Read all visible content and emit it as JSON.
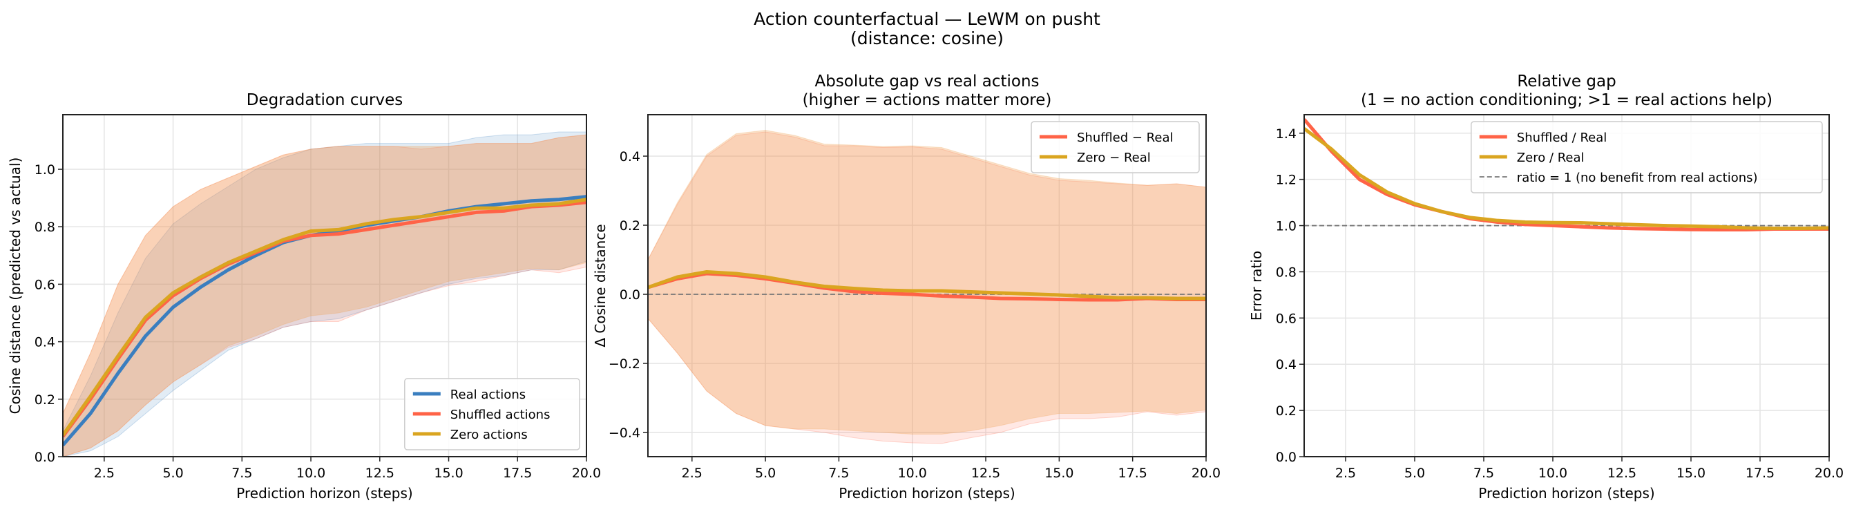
{
  "suptitle": [
    "Action counterfactual — LeWM on pusht",
    "(distance: cosine)"
  ],
  "colors": {
    "real": "#3a7ebf",
    "shuffled": "#ff6347",
    "zero": "#daa520",
    "zero_band": "#f0a050",
    "reference": "#777777"
  },
  "chart_data": [
    {
      "type": "line",
      "title": [
        "Degradation curves"
      ],
      "xlabel": "Prediction horizon (steps)",
      "ylabel": "Cosine distance  (predicted vs actual)",
      "xlim": [
        1,
        20
      ],
      "ylim": [
        0,
        1.19
      ],
      "xticks": [
        "2.5",
        "5.0",
        "7.5",
        "10.0",
        "12.5",
        "15.0",
        "17.5",
        "20.0"
      ],
      "yticks": [
        "0.0",
        "0.2",
        "0.4",
        "0.6",
        "0.8",
        "1.0"
      ],
      "grid": true,
      "legend": "lower-right",
      "x": [
        1,
        2,
        3,
        4,
        5,
        6,
        7,
        8,
        9,
        10,
        11,
        12,
        13,
        14,
        15,
        16,
        17,
        18,
        19,
        20
      ],
      "series": [
        {
          "name": "Real actions",
          "color_key": "real",
          "values": [
            0.04,
            0.15,
            0.29,
            0.42,
            0.52,
            0.59,
            0.65,
            0.7,
            0.745,
            0.77,
            0.785,
            0.805,
            0.82,
            0.835,
            0.855,
            0.87,
            0.88,
            0.89,
            0.895,
            0.905
          ],
          "band_low": [
            0,
            0.02,
            0.07,
            0.15,
            0.23,
            0.3,
            0.37,
            0.41,
            0.45,
            0.47,
            0.48,
            0.51,
            0.54,
            0.57,
            0.6,
            0.62,
            0.63,
            0.65,
            0.65,
            0.68
          ],
          "band_high": [
            0.09,
            0.28,
            0.5,
            0.69,
            0.81,
            0.88,
            0.94,
            1.0,
            1.04,
            1.07,
            1.08,
            1.09,
            1.09,
            1.09,
            1.09,
            1.11,
            1.12,
            1.12,
            1.13,
            1.13
          ]
        },
        {
          "name": "Shuffled actions",
          "color_key": "shuffled",
          "values": [
            0.07,
            0.2,
            0.34,
            0.475,
            0.56,
            0.62,
            0.67,
            0.71,
            0.75,
            0.77,
            0.775,
            0.79,
            0.805,
            0.82,
            0.835,
            0.85,
            0.855,
            0.87,
            0.875,
            0.885
          ],
          "band_low": [
            0,
            0.03,
            0.09,
            0.18,
            0.26,
            0.32,
            0.38,
            0.41,
            0.45,
            0.47,
            0.47,
            0.51,
            0.54,
            0.57,
            0.595,
            0.61,
            0.63,
            0.65,
            0.64,
            0.66
          ],
          "band_high": [
            0.15,
            0.36,
            0.6,
            0.77,
            0.87,
            0.93,
            0.97,
            1.01,
            1.05,
            1.07,
            1.08,
            1.08,
            1.08,
            1.07,
            1.08,
            1.09,
            1.09,
            1.09,
            1.11,
            1.12
          ]
        },
        {
          "name": "Zero actions",
          "color_key": "zero",
          "values": [
            0.075,
            0.21,
            0.35,
            0.485,
            0.57,
            0.625,
            0.675,
            0.715,
            0.755,
            0.785,
            0.79,
            0.81,
            0.825,
            0.835,
            0.85,
            0.865,
            0.865,
            0.875,
            0.88,
            0.895
          ],
          "band_low": [
            0,
            0.03,
            0.09,
            0.18,
            0.26,
            0.32,
            0.385,
            0.42,
            0.46,
            0.49,
            0.5,
            0.52,
            0.55,
            0.58,
            0.61,
            0.625,
            0.64,
            0.655,
            0.65,
            0.675
          ],
          "band_high": [
            0.15,
            0.36,
            0.6,
            0.77,
            0.87,
            0.93,
            0.97,
            1.01,
            1.05,
            1.07,
            1.08,
            1.08,
            1.08,
            1.08,
            1.08,
            1.09,
            1.09,
            1.09,
            1.11,
            1.12
          ]
        }
      ]
    },
    {
      "type": "line",
      "title": [
        "Absolute gap vs real actions",
        "(higher = actions matter more)"
      ],
      "xlabel": "Prediction horizon (steps)",
      "ylabel": "Δ Cosine distance",
      "xlim": [
        1,
        20
      ],
      "ylim": [
        -0.47,
        0.52
      ],
      "xticks": [
        "2.5",
        "5.0",
        "7.5",
        "10.0",
        "12.5",
        "15.0",
        "17.5",
        "20.0"
      ],
      "yticks": [
        "−0.4",
        "−0.2",
        "0.0",
        "0.2",
        "0.4"
      ],
      "reference_y": 0,
      "grid": true,
      "legend": "upper-right",
      "x": [
        1,
        2,
        3,
        4,
        5,
        6,
        7,
        8,
        9,
        10,
        11,
        12,
        13,
        14,
        15,
        16,
        17,
        18,
        19,
        20
      ],
      "series": [
        {
          "name": "Shuffled − Real",
          "color_key": "shuffled",
          "values": [
            0.02,
            0.045,
            0.06,
            0.055,
            0.045,
            0.032,
            0.018,
            0.008,
            0.003,
            0.0,
            -0.005,
            -0.008,
            -0.012,
            -0.013,
            -0.015,
            -0.016,
            -0.016,
            -0.012,
            -0.015,
            -0.015
          ],
          "band_low": [
            -0.07,
            -0.17,
            -0.28,
            -0.345,
            -0.38,
            -0.39,
            -0.4,
            -0.415,
            -0.425,
            -0.43,
            -0.432,
            -0.415,
            -0.4,
            -0.375,
            -0.36,
            -0.36,
            -0.355,
            -0.34,
            -0.35,
            -0.34
          ],
          "band_high": [
            0.1,
            0.26,
            0.4,
            0.46,
            0.47,
            0.455,
            0.43,
            0.43,
            0.425,
            0.427,
            0.42,
            0.395,
            0.37,
            0.345,
            0.33,
            0.325,
            0.32,
            0.315,
            0.32,
            0.31
          ]
        },
        {
          "name": "Zero − Real",
          "color_key": "zero",
          "values": [
            0.02,
            0.05,
            0.065,
            0.06,
            0.05,
            0.035,
            0.023,
            0.017,
            0.012,
            0.01,
            0.01,
            0.007,
            0.004,
            0.001,
            -0.002,
            -0.006,
            -0.01,
            -0.01,
            -0.012,
            -0.012
          ],
          "band_low": [
            -0.07,
            -0.17,
            -0.28,
            -0.345,
            -0.38,
            -0.39,
            -0.39,
            -0.395,
            -0.4,
            -0.405,
            -0.405,
            -0.395,
            -0.38,
            -0.36,
            -0.345,
            -0.345,
            -0.342,
            -0.338,
            -0.345,
            -0.335
          ],
          "band_high": [
            0.1,
            0.265,
            0.405,
            0.465,
            0.475,
            0.46,
            0.435,
            0.432,
            0.428,
            0.43,
            0.425,
            0.4,
            0.375,
            0.35,
            0.335,
            0.33,
            0.322,
            0.316,
            0.32,
            0.31
          ]
        }
      ]
    },
    {
      "type": "line",
      "title": [
        "Relative gap",
        "(1 = no action conditioning; >1 = real actions help)"
      ],
      "xlabel": "Prediction horizon (steps)",
      "ylabel": "Error ratio",
      "xlim": [
        1,
        20
      ],
      "ylim": [
        0,
        1.48
      ],
      "xticks": [
        "2.5",
        "5.0",
        "7.5",
        "10.0",
        "12.5",
        "15.0",
        "17.5",
        "20.0"
      ],
      "yticks": [
        "0.0",
        "0.2",
        "0.4",
        "0.6",
        "0.8",
        "1.0",
        "1.2",
        "1.4"
      ],
      "reference_y": 1,
      "reference_label": "ratio = 1  (no benefit from real actions)",
      "grid": true,
      "legend": "upper-right",
      "x": [
        1,
        2,
        3,
        4,
        5,
        6,
        7,
        8,
        9,
        10,
        11,
        12,
        13,
        14,
        15,
        16,
        17,
        18,
        19,
        20
      ],
      "series": [
        {
          "name": "Shuffled / Real",
          "color_key": "shuffled",
          "values": [
            1.46,
            1.32,
            1.2,
            1.135,
            1.09,
            1.06,
            1.03,
            1.015,
            1.005,
            1.0,
            0.995,
            0.99,
            0.987,
            0.985,
            0.983,
            0.982,
            0.982,
            0.985,
            0.985,
            0.985
          ]
        },
        {
          "name": "Zero / Real",
          "color_key": "zero",
          "values": [
            1.42,
            1.33,
            1.22,
            1.145,
            1.095,
            1.06,
            1.035,
            1.022,
            1.015,
            1.013,
            1.012,
            1.008,
            1.004,
            1.0,
            0.998,
            0.995,
            0.99,
            0.988,
            0.988,
            0.99
          ]
        }
      ]
    }
  ]
}
